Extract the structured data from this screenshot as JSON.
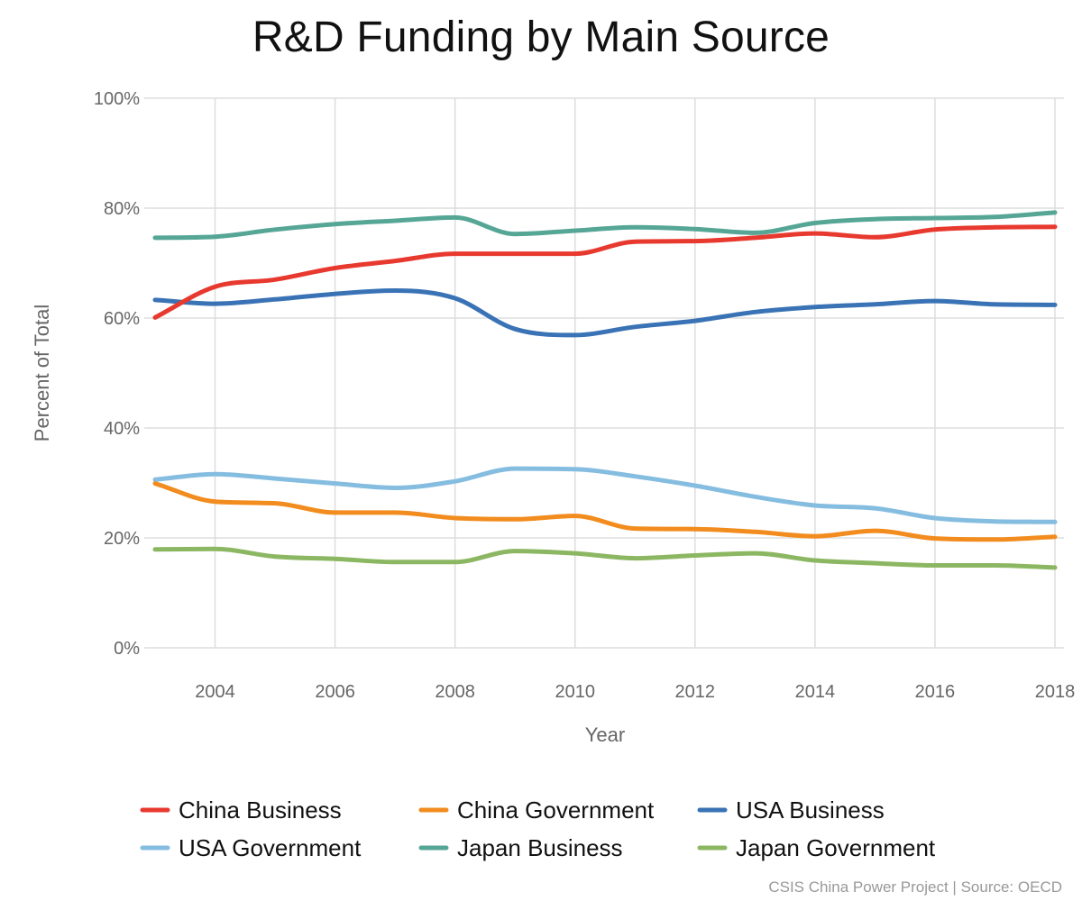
{
  "chart_data": {
    "type": "line",
    "title": "R&D Funding by Main Source",
    "xlabel": "Year",
    "ylabel": "Percent of Total",
    "x": [
      2003,
      2004,
      2005,
      2006,
      2007,
      2008,
      2009,
      2010,
      2011,
      2012,
      2013,
      2014,
      2015,
      2016,
      2017,
      2018
    ],
    "xlim": [
      2003,
      2018
    ],
    "ylim": [
      0,
      100
    ],
    "x_ticks": [
      "2004",
      "2006",
      "2008",
      "2010",
      "2012",
      "2014",
      "2016",
      "2018"
    ],
    "y_ticks": [
      "0%",
      "20%",
      "40%",
      "60%",
      "80%",
      "100%"
    ],
    "grid": true,
    "legend_position": "bottom",
    "series": [
      {
        "name": "China Business",
        "color": "#e8392f",
        "values": [
          60.1,
          65.7,
          67.0,
          69.1,
          70.4,
          71.7,
          71.7,
          71.7,
          73.9,
          74.0,
          74.6,
          75.4,
          74.7,
          76.1,
          76.5,
          76.6
        ]
      },
      {
        "name": "China Government",
        "color": "#f28c1e",
        "values": [
          29.9,
          26.6,
          26.3,
          24.6,
          24.6,
          23.6,
          23.4,
          24.0,
          21.7,
          21.6,
          21.1,
          20.3,
          21.3,
          19.9,
          19.7,
          20.2
        ]
      },
      {
        "name": "USA Business",
        "color": "#3a73b5",
        "values": [
          63.3,
          62.6,
          63.4,
          64.4,
          65.0,
          63.6,
          58.0,
          56.9,
          58.4,
          59.5,
          61.1,
          62.0,
          62.5,
          63.1,
          62.5,
          62.4
        ]
      },
      {
        "name": "USA Government",
        "color": "#85bde0",
        "values": [
          30.6,
          31.6,
          30.8,
          29.9,
          29.1,
          30.3,
          32.6,
          32.5,
          31.2,
          29.5,
          27.5,
          25.9,
          25.4,
          23.6,
          23.0,
          22.9
        ]
      },
      {
        "name": "Japan Business",
        "color": "#56a696",
        "values": [
          74.6,
          74.8,
          76.1,
          77.1,
          77.7,
          78.3,
          75.3,
          75.9,
          76.5,
          76.2,
          75.5,
          77.3,
          78.0,
          78.2,
          78.4,
          79.2
        ]
      },
      {
        "name": "Japan Government",
        "color": "#8cb762",
        "values": [
          17.9,
          18.0,
          16.6,
          16.2,
          15.6,
          15.6,
          17.6,
          17.2,
          16.3,
          16.8,
          17.2,
          15.9,
          15.4,
          15.0,
          15.0,
          14.6
        ]
      }
    ]
  },
  "source": "CSIS China Power Project | Source: OECD"
}
